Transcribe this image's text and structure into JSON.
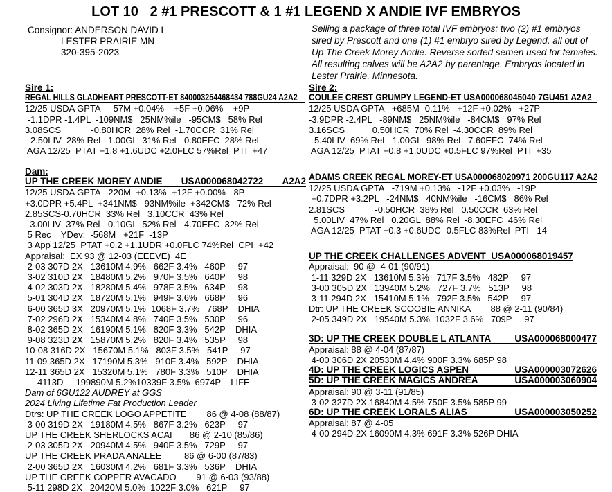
{
  "page": {
    "title": "LOT 10   2 #1 PRESCOTT & 1 #1 LEGEND X ANDIE IVF EMBRYOS"
  },
  "consignor": {
    "line1": "Consignor: ANDERSON DAVID L",
    "line2": "LESTER PRAIRIE    MN",
    "line3": "320-395-2023"
  },
  "description": {
    "text": "Selling a package of three total IVF embryos: two (2) #1 embryos sired by Prescott and one (1) #1 embryo sired by Legend, all out of Up The Creek Morey Andie. Reverse sorted semen used for females. All resulting calves will be A2A2 by parentage. Embryos located in Lester Prairie, Minnesota."
  },
  "sire1": {
    "label": "Sire 1:",
    "name": "REGAL HILLS GLADHEART PRESCOTT-ET 840003254468434 788GU24 A2A2",
    "stats": [
      "12/25 USDA GPTA    -57M +0.04%    +5F +0.06%    +9P",
      " -1.1DPR -1.4PL  -109NM$   25NM%ile   -95CM$   58% Rel",
      "3.08SCS            -0.80HCR  28% Rel  -1.70CCR  31% Rel",
      " -2.50LIV  28% Rel   1.00GL  31% Rel  -0.80EFC  28% Rel",
      " AGA 12/25  PTAT +1.8 +1.6UDC +2.0FLC 57%Rel  PTI  +47"
    ]
  },
  "sire2": {
    "label": "Sire 2:",
    "name": "COULEE CREST GRUMPY LEGEND-ET USA000068045040 7GU451 A2A2",
    "stats": [
      "12/25 USDA GPTA   +685M -0.11%   +12F +0.02%   +27P",
      "-3.9DPR -2.4PL   -89NM$   25NM%ile   -84CM$   97% Rel",
      "3.16SCS           0.50HCR  70% Rel  -4.30CCR  89% Rel",
      " -5.40LIV  69% Rel  -1.00GL  98% Rel   7.60EFC  74% Rel",
      " AGA 12/25  PTAT +0.8 +1.0UDC +0.5FLC 97%Rel  PTI  +35"
    ]
  },
  "dam": {
    "label": "Dam:",
    "name": "UP THE CREEK MOREY ANDIE",
    "reg": "USA000068042722",
    "a2a2": "A2A2",
    "stats": [
      "12/25 USDA GPTA  -220M  +0.13%  +12F +0.00%  -8P",
      "+3.0DPR +5.4PL  +341NM$   93NM%ile  +342CM$   72% Rel",
      "2.85SCS-0.70HCR  33% Rel   3.10CCR  43% Rel",
      "  3.00LIV  37% Rel  -0.10GL  52% Rel  -4.70EFC  32% Rel",
      " 5 Rec    YDev:  -568M   +21F  -13P",
      " 3 App 12/25  PTAT +0.2 +1.1UDR +0.0FLC 74%Rel  CPI  +42",
      "Appraisal:  EX 93 @ 12-03 (EEEVE)  4E"
    ],
    "records": [
      " 2-03 307D 2X   13610M 4.9%   662F 3.4%   460P     97",
      " 3-02 310D 2X   18480M 5.2%   970F 3.5%   640P     98",
      " 4-02 303D 2X   18280M 5.4%   978F 3.5%   634P     98",
      " 5-01 304D 2X   18720M 5.1%   949F 3.6%   668P     96",
      " 6-00 365D 3X   20970M 5.1%  1068F 3.7%   768P    DHIA",
      " 7-02 296D 2X   15340M 4.8%   740F 3.5%   530P     96",
      " 8-02 365D 2X   16190M 5.1%   820F 3.3%   542P    DHIA",
      " 9-08 323D 2X   15870M 5.2%   820F 3.4%   535P     98",
      "10-08 316D 2X   15670M 5.1%   803F 3.5%   541P     97",
      "11-09 365D 2X   17190M 5.3%   910F 3.4%   592P    DHIA",
      "12-11 365D 2X   15320M 5.1%   780F 3.3%   510P    DHIA",
      "     4113D     199890M 5.2%10339F 3.5%  6974P    LIFE"
    ],
    "notes": [
      "Dam of 6GU122 AUDREY at GGS",
      "2024 Living Lifetime Fat Production Leader"
    ],
    "daughters": [
      "Dtrs: UP THE CREEK LOGO APPETITE        86 @ 4-08 (88/87)",
      " 3-00 319D 2X   19180M 4.5%   867F 3.2%   623P     97",
      "UP THE CREEK SHERLOCKS ACAI       86 @ 2-10 (85/86)",
      " 2-03 305D 2X   20940M 4.5%   940F 3.5%   729P     97",
      "UP THE CREEK PRADA ANALEE         86 @ 6-00 (87/83)",
      " 2-00 365D 2X   16030M 4.2%   681F 3.3%   536P    DHIA",
      "UP THE CREEK COPPER AVACADO        91 @ 6-03 (93/88)",
      " 5-11 298D 2X   20420M 5.0%  1022F 3.0%   621P     97"
    ]
  },
  "granddam": {
    "name": "ADAMS CREEK REGAL MOREY-ET USA000068020971 200GU117 A2A2",
    "stats": [
      "12/25 USDA GPTA   -719M +0.13%   -12F +0.03%   -19P",
      " +0.7DPR +3.2PL   -24NM$   40NM%ile   -16CM$   86% Rel",
      "2.81SCS            -0.50HCR  38% Rel   0.50CCR  63% Rel",
      "  5.00LIV  47% Rel   0.20GL  88% Rel  -8.30EFC  46% Rel",
      " AGA 12/25  PTAT +0.3 +0.6UDC -0.5FLC 83%Rel  PTI  -14"
    ]
  },
  "advent": {
    "name": "UP THE CREEK CHALLENGES ADVENT  USA000068019457",
    "lines": [
      "Appraisal:  90 @  4-01 (90/91)",
      " 1-11 329D 2X   13610M 5.3%   717F 3.5%   482P     97",
      " 3-00 305D 2X   13940M 5.2%   727F 3.7%   513P     98",
      " 3-11 294D 2X   15410M 5.1%   792F 3.5%   542P     97",
      "Dtr: UP THE CREEK SCOOBIE ANNIKA        88 @ 2-11 (90/84)",
      " 2-05 349D 2X   19540M 5.3%  1032F 3.6%   709P     97"
    ]
  },
  "gen3": {
    "name": "3D: UP THE CREEK DOUBLE L ATLANTA",
    "reg": "USA000068000477",
    "lines": [
      "Appraisal: 88 @ 4-04 (87/87)",
      " 4-00 306D 2X 20530M 4.4% 900F 3.3% 685P 98"
    ]
  },
  "gen4": {
    "name": "4D: UP THE CREEK LOGICS ASPEN",
    "reg": "USA000003072626"
  },
  "gen5": {
    "name": "5D: UP THE CREEK MAGICS ANDREA",
    "reg": "USA000003060904",
    "lines": [
      "Appraisal: 90 @ 3-11 (91/85)",
      " 3-02 327D 2X 16840M 4.5% 750F 3.5% 585P 99"
    ]
  },
  "gen6": {
    "name": "6D: UP THE CREEK LORALS ALIAS",
    "reg": "USA000003050252",
    "lines": [
      "Appraisal: 87 @ 4-05",
      " 4-00 294D 2X 16090M 4.3% 691F 3.3% 526P DHIA"
    ]
  }
}
